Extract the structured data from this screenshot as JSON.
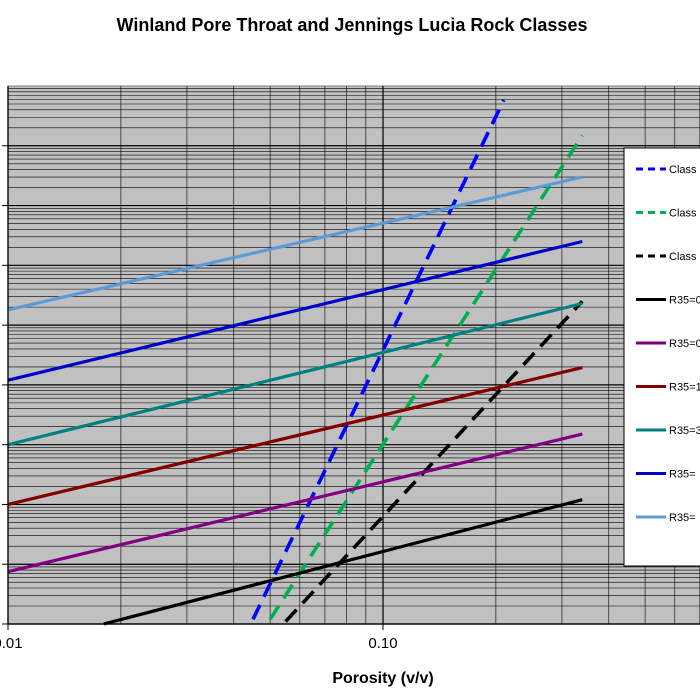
{
  "chart_data": {
    "type": "line",
    "title": "Winland Pore Throat and Jennings Lucia Rock Classes",
    "xlabel": "Porosity (v/v)",
    "ylabel": "",
    "xscale": "log",
    "yscale": "log",
    "xlim": [
      0.01,
      0.4
    ],
    "ylim": [
      0.001,
      1000000
    ],
    "x_tick_labels": [
      {
        "x": 0.01,
        "label": "0.01"
      },
      {
        "x": 0.1,
        "label": "0.10"
      }
    ],
    "grid": true,
    "plot_background": "#c0c0c0",
    "legend_position": "right",
    "series": [
      {
        "name": "Class",
        "color": "#0000ff",
        "dash": true,
        "x": [
          0.045,
          0.21
        ],
        "y": [
          0.0012,
          580000
        ]
      },
      {
        "name": "Class",
        "color": "#00b050",
        "dash": true,
        "x": [
          0.05,
          0.34
        ],
        "y": [
          0.0012,
          150000
        ]
      },
      {
        "name": "Class",
        "color": "#000000",
        "dash": true,
        "x": [
          0.055,
          0.34
        ],
        "y": [
          0.0011,
          250
        ]
      },
      {
        "name": "R35=0",
        "color": "#000000",
        "dash": false,
        "x": [
          0.018,
          0.34
        ],
        "y": [
          0.001,
          0.12
        ]
      },
      {
        "name": "R35=0",
        "color": "#800080",
        "dash": false,
        "x": [
          0.01,
          0.34
        ],
        "y": [
          0.0075,
          1.5
        ]
      },
      {
        "name": "R35=1",
        "color": "#800000",
        "dash": false,
        "x": [
          0.01,
          0.34
        ],
        "y": [
          0.1,
          19.5
        ]
      },
      {
        "name": "R35=3",
        "color": "#008080",
        "dash": false,
        "x": [
          0.01,
          0.34
        ],
        "y": [
          1.0,
          230
        ]
      },
      {
        "name": "R35=",
        "color": "#0000cc",
        "dash": false,
        "x": [
          0.01,
          0.34
        ],
        "y": [
          12,
          2500
        ]
      },
      {
        "name": "R35=",
        "color": "#5b9bd5",
        "dash": false,
        "x": [
          0.01,
          0.34
        ],
        "y": [
          180,
          30000
        ]
      }
    ]
  }
}
